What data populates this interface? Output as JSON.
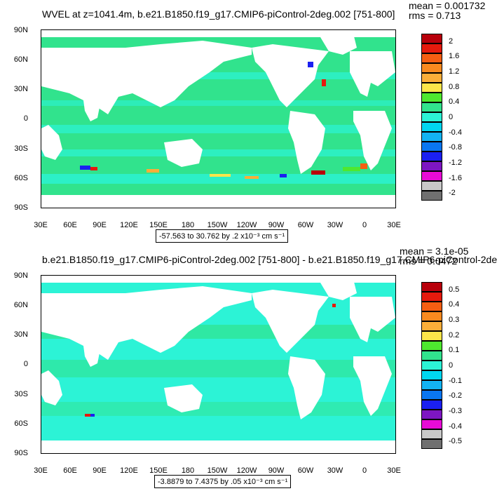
{
  "panel1": {
    "title": "WVEL at z=1041.4m, b.e21.B1850.f19_g17.CMIP6-piControl-2deg.002 [751-800]",
    "mean": "mean = 0.001732",
    "rms": "rms = 0.713",
    "info": "-57.563 to 30.762 by .2 x10⁻³ cm s⁻¹",
    "colorbar_labels": [
      "2",
      "1.6",
      "1.2",
      "0.8",
      "0.4",
      "0",
      "-0.4",
      "-0.8",
      "-1.2",
      "-1.6",
      "-2"
    ],
    "colorbar_colors": [
      "#b8000b",
      "#e51a0d",
      "#f55e12",
      "#f98a1f",
      "#fbae39",
      "#fce54a",
      "#4ee82f",
      "#31e38d",
      "#2cf3d6",
      "#00d7f0",
      "#13b3f2",
      "#0a76f1",
      "#1b20f1",
      "#7d16c2",
      "#e80bd6",
      "#c8c8c8",
      "#707070"
    ]
  },
  "panel2": {
    "title": "b.e21.B1850.f19_g17.CMIP6-piControl-2deg.002 [751-800] - b.e21.B1850.f19_g17.CMIP6-piControl-2de",
    "mean": "mean = 3.1e-05",
    "rms": "rms = 0.0472",
    "info": "-3.8879 to 7.4375 by .05 x10⁻³ cm s⁻¹",
    "colorbar_labels": [
      "0.5",
      "0.4",
      "0.3",
      "0.2",
      "0.1",
      "0",
      "-0.1",
      "-0.2",
      "-0.3",
      "-0.4",
      "-0.5"
    ],
    "colorbar_colors": [
      "#b8000b",
      "#e51a0d",
      "#f55e12",
      "#f98a1f",
      "#fbae39",
      "#fce54a",
      "#4ee82f",
      "#31e38d",
      "#2cf3d6",
      "#00d7f0",
      "#13b3f2",
      "#0a76f1",
      "#1b20f1",
      "#7d16c2",
      "#e80bd6",
      "#c8c8c8",
      "#707070"
    ]
  },
  "axes": {
    "y_ticks": [
      "90N",
      "60N",
      "30N",
      "0",
      "30S",
      "60S",
      "90S"
    ],
    "x_ticks": [
      "30E",
      "60E",
      "90E",
      "120E",
      "150E",
      "180",
      "150W",
      "120W",
      "90W",
      "60W",
      "30W",
      "0",
      "30E"
    ]
  },
  "colors": {
    "ocean_green": "#31e38d",
    "ocean_cyan": "#2cf3d6",
    "land": "#ffffff"
  }
}
